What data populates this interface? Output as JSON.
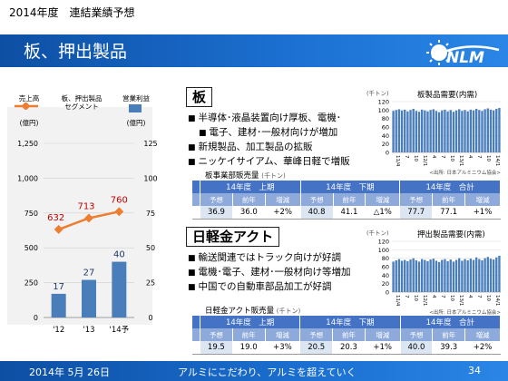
{
  "header": {
    "top_title": "2014年度　連結業績予想",
    "banner_title": "板、押出製品"
  },
  "footer": {
    "date": "2014年 5月 26日",
    "slogan": "アルミにこだわり、アルミを超えていく",
    "page": "34"
  },
  "left_chart": {
    "legend_sales": "売上高",
    "legend_sales_unit": "(億円)",
    "legend_segment_line1": "板、押出製品",
    "legend_segment_line2": "セグメント",
    "legend_profit": "営業利益",
    "legend_profit_unit": "(億円)",
    "colors": {
      "sales_line": "#ed7d31",
      "profit_bar": "#4a7ebb",
      "sales_label": "#c00000",
      "profit_label": "#1f3864"
    }
  },
  "chart_data": [
    {
      "type": "bar",
      "categories": [
        "'12",
        "'13",
        "'14予"
      ],
      "series": [
        {
          "name": "営業利益",
          "values": [
            17,
            27,
            40
          ],
          "axis": "right"
        },
        {
          "name": "売上高",
          "values": [
            632,
            713,
            760
          ],
          "axis": "left",
          "render": "line"
        }
      ],
      "ylim_left": [
        0,
        1250
      ],
      "yticks_left": [
        "0",
        "250",
        "500",
        "750",
        "1,000",
        "1,250"
      ],
      "ylim_right": [
        0,
        125
      ],
      "yticks_right": [
        "0",
        "25",
        "50",
        "75",
        "100",
        "125"
      ]
    },
    {
      "type": "bar",
      "title": "板製品需要(内需)",
      "unit": "(千トン)",
      "yticks": [
        "0",
        "20",
        "40",
        "60",
        "80",
        "100",
        "120"
      ],
      "ylim": [
        0,
        120
      ],
      "xticks": [
        "11/4",
        "7",
        "10",
        "12/1",
        "4",
        "7",
        "10",
        "13/1",
        "4",
        "7",
        "10",
        "14/1"
      ],
      "values": [
        98,
        100,
        102,
        99,
        101,
        97,
        100,
        103,
        98,
        96,
        101,
        99,
        97,
        100,
        102,
        98,
        95,
        99,
        101,
        97,
        100,
        96,
        99,
        102,
        98,
        100,
        97,
        101,
        99,
        103,
        100,
        98,
        102,
        104,
        101,
        99,
        103,
        105
      ],
      "source": "<出所: 日本アルミニウム協会>"
    },
    {
      "type": "bar",
      "title": "押出製品需要(内需)",
      "unit": "(千トン)",
      "yticks": [
        "0",
        "20",
        "40",
        "60",
        "80",
        "100",
        "120"
      ],
      "ylim": [
        0,
        120
      ],
      "xticks": [
        "11/4",
        "7",
        "10",
        "12/1",
        "4",
        "7",
        "10",
        "13/1",
        "4",
        "7",
        "10",
        "14/1"
      ],
      "values": [
        72,
        75,
        78,
        74,
        76,
        73,
        77,
        80,
        75,
        72,
        78,
        76,
        73,
        77,
        79,
        74,
        71,
        76,
        78,
        73,
        77,
        72,
        76,
        80,
        74,
        78,
        75,
        79,
        76,
        82,
        78,
        75,
        80,
        83,
        79,
        77,
        82,
        86
      ],
      "source": "<出所: 日本アルミニウム協会>"
    }
  ],
  "plate": {
    "heading": "板",
    "bullets": [
      "半導体･液晶装置向け厚板、電機･",
      "電子、建材･一般材向けが増加",
      "新規製品、加工製品の拡販",
      "ニッケイサイアム、華峰日軽で増販"
    ],
    "table_title": "板事業部販売量",
    "table_unit": "(千トン)",
    "periods": [
      "14年度　上期",
      "14年度　下期",
      "14年度　合計"
    ],
    "subheads": [
      "予想",
      "前年",
      "増減"
    ],
    "rows": [
      [
        "36.9",
        "36.0",
        "+2%"
      ],
      [
        "40.8",
        "41.1",
        "△1%"
      ],
      [
        "77.7",
        "77.1",
        "+1%"
      ]
    ]
  },
  "extrusion": {
    "heading": "日軽金アクト",
    "bullets": [
      "輸送関連ではトラック向けが好調",
      "電機･電子、建材･一般材向け等増加",
      "中国での自動車部品加工が好調"
    ],
    "table_title": "日軽金アクト販売量",
    "table_unit": "(千トン)",
    "periods": [
      "14年度　上期",
      "14年度　下期",
      "14年度　合計"
    ],
    "subheads": [
      "予想",
      "前年",
      "増減"
    ],
    "rows": [
      [
        "19.5",
        "19.0",
        "+3%"
      ],
      [
        "20.5",
        "20.3",
        "+1%"
      ],
      [
        "40.0",
        "39.3",
        "+2%"
      ]
    ]
  }
}
